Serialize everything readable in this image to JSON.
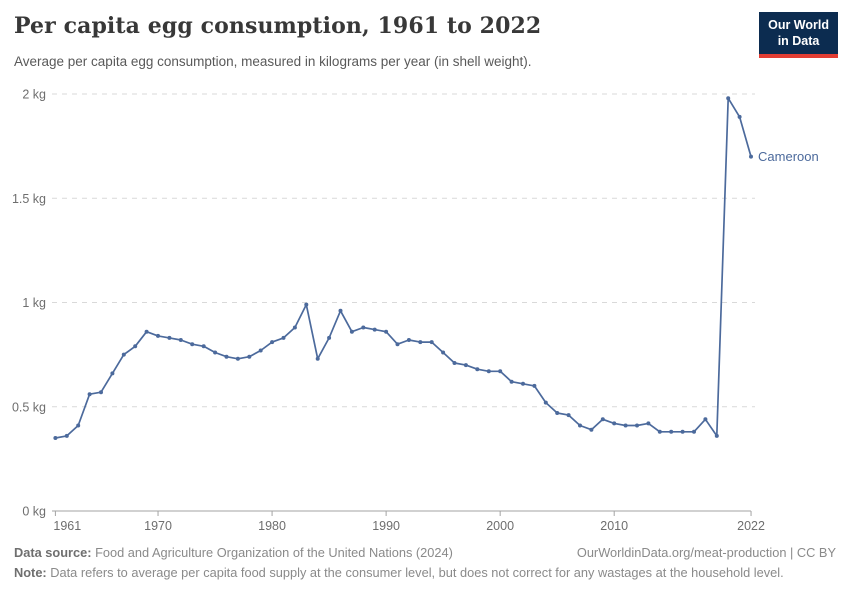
{
  "header": {
    "title": "Per capita egg consumption, 1961 to 2022",
    "subtitle": "Average per capita egg consumption, measured in kilograms per year (in shell weight).",
    "logo": {
      "line1": "Our World",
      "line2": "in Data"
    }
  },
  "chart_data": {
    "type": "line",
    "title": "Per capita egg consumption, 1961 to 2022",
    "xlabel": "",
    "ylabel": "",
    "xlim": [
      1961,
      2022
    ],
    "ylim": [
      0,
      2
    ],
    "grid": "horizontal-dashed",
    "legend_position": "end-of-line-label",
    "x_ticks": [
      1961,
      1970,
      1980,
      1990,
      2000,
      2010,
      2022
    ],
    "y_ticks": [
      {
        "value": 0,
        "label": "0 kg"
      },
      {
        "value": 0.5,
        "label": "0.5 kg"
      },
      {
        "value": 1,
        "label": "1 kg"
      },
      {
        "value": 1.5,
        "label": "1.5 kg"
      },
      {
        "value": 2,
        "label": "2 kg"
      }
    ],
    "x": [
      1961,
      1962,
      1963,
      1964,
      1965,
      1966,
      1967,
      1968,
      1969,
      1970,
      1971,
      1972,
      1973,
      1974,
      1975,
      1976,
      1977,
      1978,
      1979,
      1980,
      1981,
      1982,
      1983,
      1984,
      1985,
      1986,
      1987,
      1988,
      1989,
      1990,
      1991,
      1992,
      1993,
      1994,
      1995,
      1996,
      1997,
      1998,
      1999,
      2000,
      2001,
      2002,
      2003,
      2004,
      2005,
      2006,
      2007,
      2008,
      2009,
      2010,
      2011,
      2012,
      2013,
      2014,
      2015,
      2016,
      2017,
      2018,
      2019,
      2020,
      2021,
      2022
    ],
    "series": [
      {
        "name": "Cameroon",
        "color": "#4c6a9c",
        "values": [
          0.35,
          0.36,
          0.41,
          0.56,
          0.57,
          0.66,
          0.75,
          0.79,
          0.86,
          0.84,
          0.83,
          0.82,
          0.8,
          0.79,
          0.76,
          0.74,
          0.73,
          0.74,
          0.77,
          0.81,
          0.83,
          0.88,
          0.99,
          0.73,
          0.83,
          0.96,
          0.86,
          0.88,
          0.87,
          0.86,
          0.8,
          0.82,
          0.81,
          0.81,
          0.76,
          0.71,
          0.7,
          0.68,
          0.67,
          0.67,
          0.62,
          0.61,
          0.6,
          0.52,
          0.47,
          0.46,
          0.41,
          0.39,
          0.44,
          0.42,
          0.41,
          0.41,
          0.42,
          0.38,
          0.38,
          0.38,
          0.38,
          0.44,
          0.36,
          1.98,
          1.89,
          1.7
        ]
      }
    ],
    "unit_suffix": " kg"
  },
  "footer": {
    "source_label": "Data source:",
    "source_text": " Food and Agriculture Organization of the United Nations (2024)",
    "link": "OurWorldinData.org/meat-production | CC BY",
    "note_label": "Note:",
    "note_text": " Data refers to average per capita food supply at the consumer level, but does not correct for any wastages at the household level."
  },
  "colors": {
    "line": "#4c6a9c",
    "grid": "#d9d9d9",
    "axis": "#a3a3a3",
    "tick_text": "#6e6e6e",
    "title_text": "#383838",
    "subtitle_text": "#595959",
    "footer_text": "#8a8a8a",
    "logo_bg": "#0c2c50",
    "logo_red": "#e23d33"
  }
}
